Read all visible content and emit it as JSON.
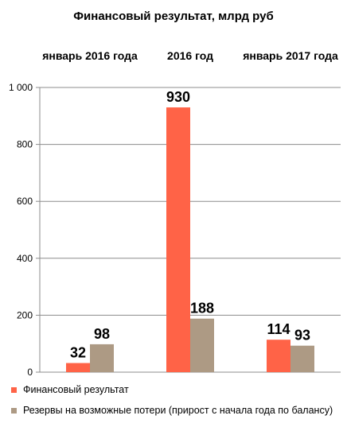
{
  "chart_data": {
    "type": "bar",
    "title": "Финансовый результат, млрд руб",
    "categories": [
      "январь 2016 года",
      "2016 год",
      "январь 2017 года"
    ],
    "series": [
      {
        "name": "Финансовый результат",
        "values": [
          32,
          930,
          114
        ],
        "color": "#FF6347"
      },
      {
        "name": "Резервы на возможные потери (прирост с начала года по балансу)",
        "values": [
          98,
          188,
          93
        ],
        "color": "#AD9A84"
      }
    ],
    "y_ticks": [
      "0",
      "200",
      "400",
      "600",
      "800",
      "1 000"
    ],
    "ylim": [
      0,
      1000
    ],
    "grid": true,
    "category_label_position": "top",
    "legend_position": "bottom"
  }
}
